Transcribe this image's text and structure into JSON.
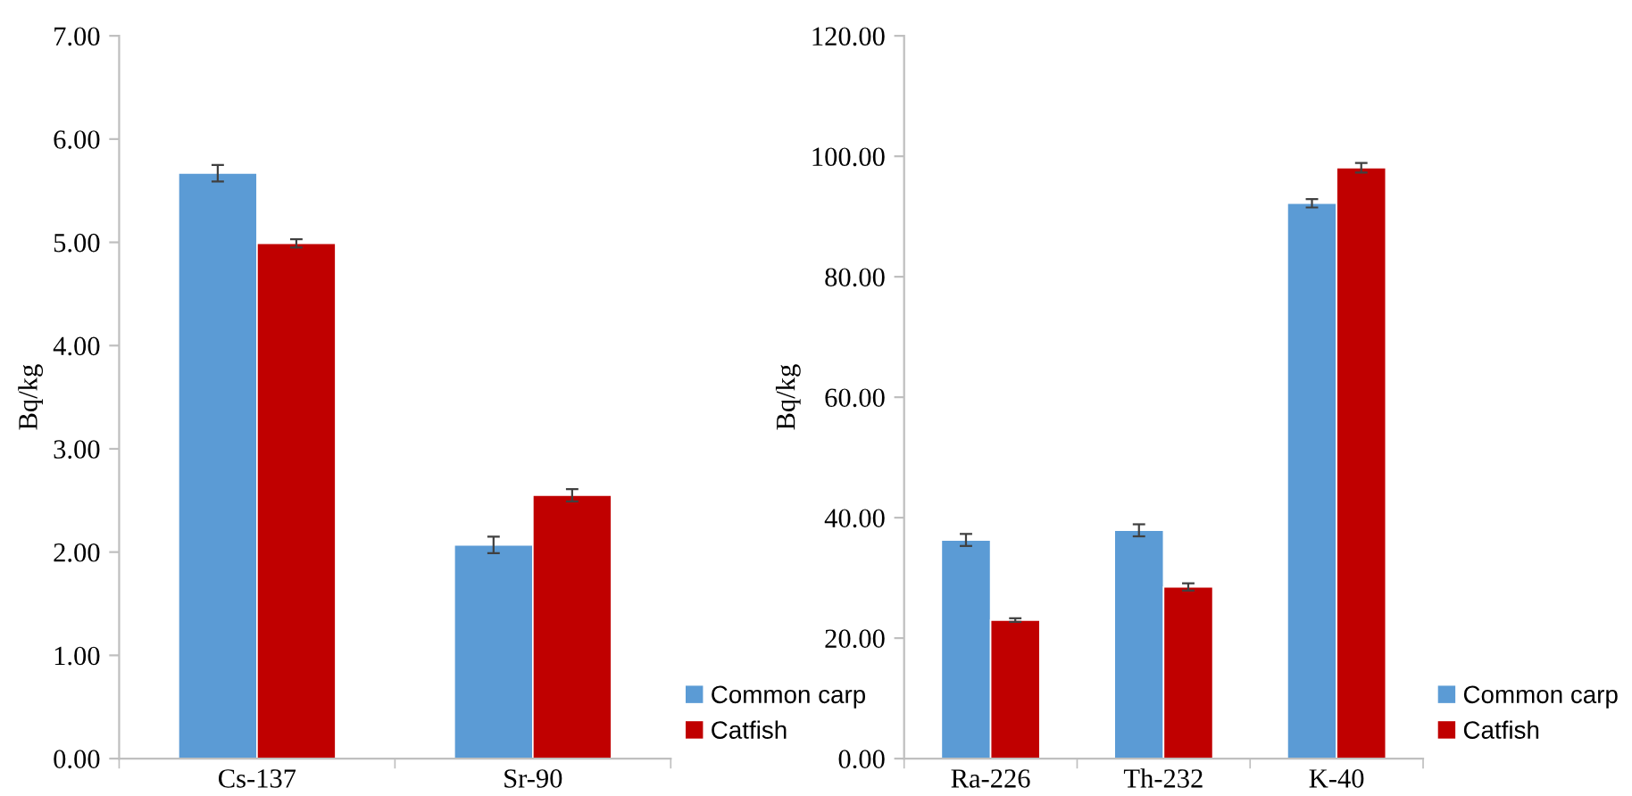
{
  "chart_data": [
    {
      "type": "bar",
      "ylabel": "Bq/kg",
      "categories": [
        "Cs-137",
        "Sr-90"
      ],
      "ylim": [
        0,
        7
      ],
      "yticks": [
        {
          "value": 0,
          "label": "0.00"
        },
        {
          "value": 1,
          "label": "1.00"
        },
        {
          "value": 2,
          "label": "2.00"
        },
        {
          "value": 3,
          "label": "3.00"
        },
        {
          "value": 4,
          "label": "4.00"
        },
        {
          "value": 5,
          "label": "5.00"
        },
        {
          "value": 6,
          "label": "6.00"
        },
        {
          "value": 7,
          "label": "7.00"
        }
      ],
      "grid": false,
      "legend": "bottom right",
      "series": [
        {
          "name": "Common carp",
          "color": "#5b9bd5",
          "values": [
            5.67,
            2.07
          ],
          "errors": [
            0.08,
            0.08
          ]
        },
        {
          "name": "Catfish",
          "color": "#c00000",
          "values": [
            4.99,
            2.55
          ],
          "errors": [
            0.04,
            0.06
          ]
        }
      ]
    },
    {
      "type": "bar",
      "ylabel": "Bq/kg",
      "categories": [
        "Ra-226",
        "Th-232",
        "K-40"
      ],
      "ylim": [
        0,
        120
      ],
      "yticks": [
        {
          "value": 0,
          "label": "0.00"
        },
        {
          "value": 20,
          "label": "20.00"
        },
        {
          "value": 40,
          "label": "40.00"
        },
        {
          "value": 60,
          "label": "60.00"
        },
        {
          "value": 80,
          "label": "80.00"
        },
        {
          "value": 100,
          "label": "100.00"
        },
        {
          "value": 120,
          "label": "120.00"
        }
      ],
      "grid": false,
      "legend": "bottom right",
      "series": [
        {
          "name": "Common carp",
          "color": "#5b9bd5",
          "values": [
            36.3,
            37.9,
            92.2
          ],
          "errors": [
            1.0,
            1.0,
            0.7
          ]
        },
        {
          "name": "Catfish",
          "color": "#c00000",
          "values": [
            23.0,
            28.5,
            98.1
          ],
          "errors": [
            0.3,
            0.6,
            0.8
          ]
        }
      ]
    }
  ]
}
